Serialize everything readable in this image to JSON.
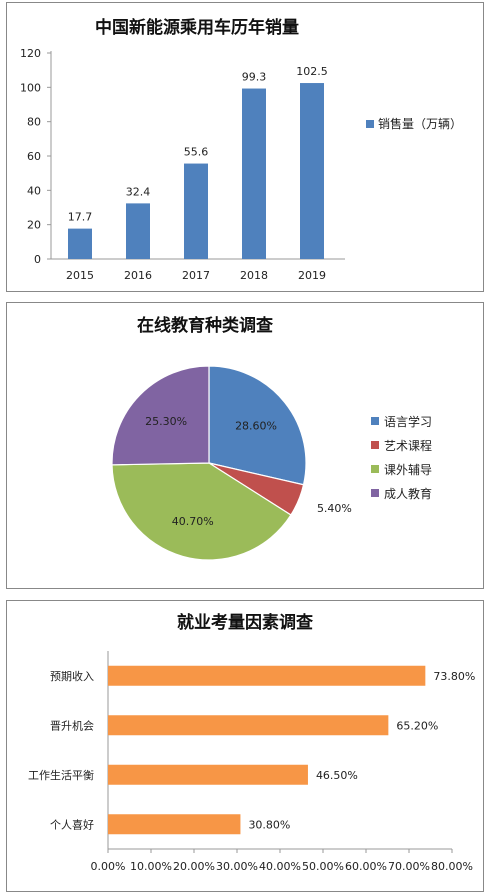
{
  "charts": [
    {
      "type": "bar",
      "title": "中国新能源乘用车历年销量",
      "categories": [
        "2015",
        "2016",
        "2017",
        "2018",
        "2019"
      ],
      "values": [
        17.7,
        32.4,
        55.6,
        99.3,
        102.5
      ],
      "value_labels": [
        "17.7",
        "32.4",
        "55.6",
        "99.3",
        "102.5"
      ],
      "y_ticks": [
        "0",
        "20",
        "40",
        "60",
        "80",
        "100",
        "120"
      ],
      "ylim": [
        0,
        120
      ],
      "legend": "销售量（万辆）",
      "legend_position": "right",
      "grid": false,
      "color": "#4F81BD"
    },
    {
      "type": "pie",
      "title": "在线教育种类调查",
      "slices": [
        {
          "name": "语言学习",
          "value": 28.6,
          "label": "28.60%",
          "color": "#4F81BD"
        },
        {
          "name": "艺术课程",
          "value": 5.4,
          "label": "5.40%",
          "color": "#C0504D"
        },
        {
          "name": "课外辅导",
          "value": 40.7,
          "label": "40.70%",
          "color": "#9BBB59"
        },
        {
          "name": "成人教育",
          "value": 25.3,
          "label": "25.30%",
          "color": "#8064A2"
        }
      ],
      "legend_position": "right"
    },
    {
      "type": "bar",
      "orientation": "horizontal",
      "title": "就业考量因素调查",
      "categories": [
        "预期收入",
        "晋升机会",
        "工作生活平衡",
        "个人喜好"
      ],
      "values": [
        73.8,
        65.2,
        46.5,
        30.8
      ],
      "value_labels": [
        "73.80%",
        "65.20%",
        "46.50%",
        "30.80%"
      ],
      "x_ticks": [
        "0.00%",
        "10.00%",
        "20.00%",
        "30.00%",
        "40.00%",
        "50.00%",
        "60.00%",
        "70.00%",
        "80.00%"
      ],
      "xlim": [
        0,
        80
      ],
      "grid": false,
      "color": "#F79646"
    }
  ]
}
